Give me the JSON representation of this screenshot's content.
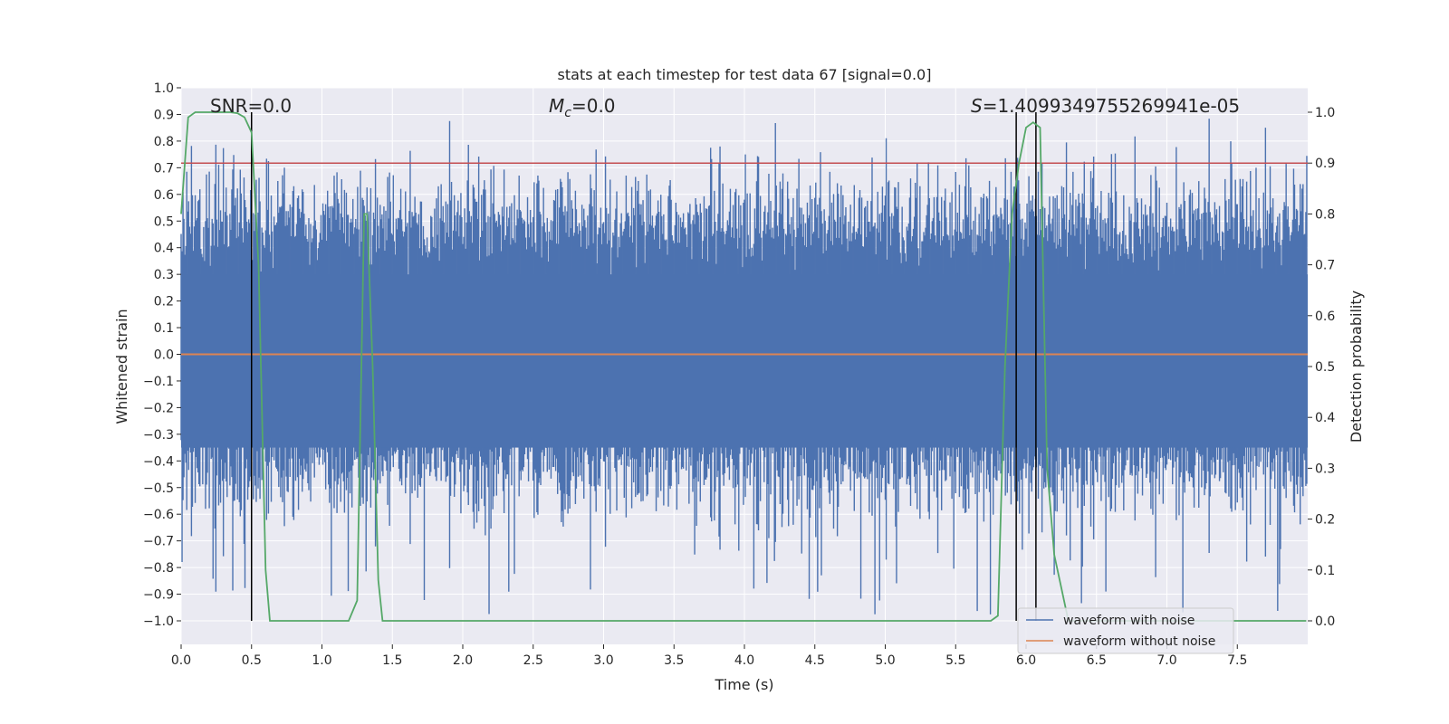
{
  "chart_data": {
    "type": "line",
    "title": "stats at each timestep for test data 67 [signal=0.0]",
    "xlabel": "Time (s)",
    "ylabel": "Whitened strain",
    "y2label": "Detection probability",
    "xlim": [
      0.0,
      8.0
    ],
    "ylim": [
      -1.0,
      1.0
    ],
    "y2lim": [
      0.0,
      1.0
    ],
    "x_ticks": [
      "0.0",
      "0.5",
      "1.0",
      "1.5",
      "2.0",
      "2.5",
      "3.0",
      "3.5",
      "4.0",
      "4.5",
      "5.0",
      "5.5",
      "6.0",
      "6.5",
      "7.0",
      "7.5"
    ],
    "y_ticks": [
      "1.0",
      "0.9",
      "0.8",
      "0.7",
      "0.6",
      "0.5",
      "0.4",
      "0.3",
      "0.2",
      "0.1",
      "0.0",
      "−0.1",
      "−0.2",
      "−0.3",
      "−0.4",
      "−0.5",
      "−0.6",
      "−0.7",
      "−0.8",
      "−0.9",
      "−1.0"
    ],
    "y2_ticks": [
      "1.0",
      "0.9",
      "0.8",
      "0.7",
      "0.6",
      "0.5",
      "0.4",
      "0.3",
      "0.2",
      "0.1",
      "0.0"
    ],
    "grid": true,
    "legend_position": "lower-right",
    "annotations": {
      "snr": "SNR=0.0",
      "mc_symbol": "M",
      "mc_sub": "c",
      "mc_value": "=0.0",
      "s_symbol": "S",
      "s_value": "=1.4099349755269941e-05"
    },
    "series": [
      {
        "name": "waveform with noise",
        "color": "#4c72b0",
        "kind": "noise",
        "amplitude_range": [
          -0.98,
          0.95
        ]
      },
      {
        "name": "waveform without noise",
        "color": "#dd8452",
        "kind": "constant",
        "value": 0.0
      },
      {
        "color": "#55a868",
        "kind": "probability",
        "x": [
          0.0,
          0.05,
          0.1,
          0.15,
          0.2,
          0.3,
          0.35,
          0.4,
          0.45,
          0.5,
          0.55,
          0.6,
          0.63,
          0.7,
          1.0,
          1.19,
          1.25,
          1.3,
          1.32,
          1.36,
          1.4,
          1.43,
          1.6,
          3.0,
          4.9,
          5.0,
          5.75,
          5.8,
          5.85,
          5.9,
          5.95,
          6.0,
          6.05,
          6.1,
          6.15,
          6.2,
          6.3,
          7.99
        ],
        "y": [
          0.8,
          0.99,
          1.0,
          1.0,
          1.0,
          1.0,
          1.0,
          0.998,
          0.99,
          0.96,
          0.7,
          0.1,
          0.0,
          0.0,
          0.0,
          0.0,
          0.04,
          0.8,
          0.8,
          0.5,
          0.08,
          0.0,
          0.0,
          0.0,
          0.0,
          0.0,
          0.0,
          0.01,
          0.5,
          0.8,
          0.9,
          0.97,
          0.98,
          0.97,
          0.3,
          0.13,
          0.0,
          0.0
        ]
      },
      {
        "color": "#c44e52",
        "kind": "threshold",
        "y2_value": 0.9
      }
    ],
    "vlines_x": [
      0.5,
      5.93,
      6.07
    ]
  },
  "legend": {
    "items": [
      {
        "label": "waveform with noise",
        "color": "#4c72b0"
      },
      {
        "label": "waveform without noise",
        "color": "#dd8452"
      }
    ]
  }
}
